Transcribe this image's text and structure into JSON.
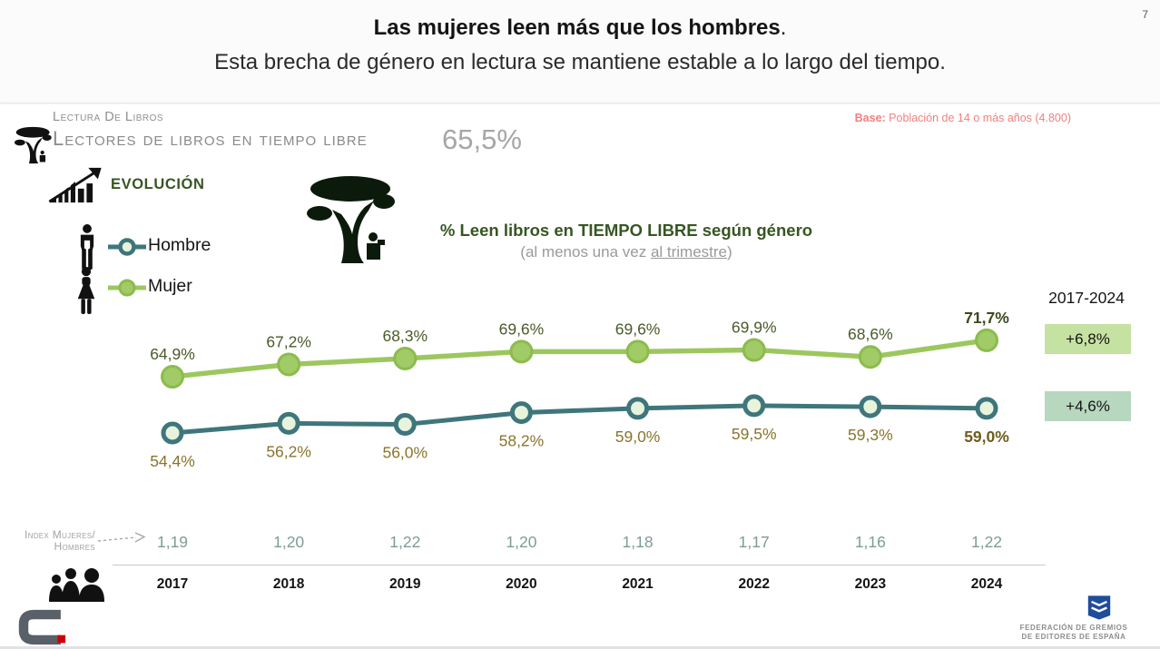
{
  "page": {
    "number": "7"
  },
  "title": {
    "main": "Las mujeres leen más que los hombres",
    "period": ".",
    "subtitle": "Esta brecha de género en lectura se mantiene estable a lo largo del tiempo."
  },
  "header": {
    "kicker": "Lectura De Libros",
    "title": "Lectores de libros en tiempo libre",
    "total": "65,5%",
    "base_label": "Base:",
    "base_text": " Población de 14 o más años (4.800)"
  },
  "section": {
    "evolution_label": "EVOLUCIÓN"
  },
  "chart_heading": {
    "subtitle_prefix": "(al menos una vez ",
    "subtitle_underlined": "al trimestre",
    "subtitle_suffix": ")"
  },
  "index_row": {
    "label_line1": "Index Mujeres/",
    "label_line2": "Hombres"
  },
  "footer": {
    "org_line1": "FEDERACIÓN DE GREMIOS",
    "org_line2": "DE EDITORES DE ESPAÑA"
  },
  "colors": {
    "dark_green_accent": "#375623",
    "base_note_pink": "#f08080",
    "index_value_teal": "#7e9c98",
    "logo_red": "#cc0000",
    "federation_blue": "#1f4c9c"
  },
  "chart_data": {
    "type": "line",
    "title": "% Leen libros en TIEMPO LIBRE según género",
    "subtitle": "(al menos una vez al trimestre)",
    "range_label": "2017-2024",
    "categories": [
      "2017",
      "2018",
      "2019",
      "2020",
      "2021",
      "2022",
      "2023",
      "2024"
    ],
    "series": [
      {
        "name": "Mujer",
        "color": "#9cc75e",
        "marker_fill": "#a0cb66",
        "marker_stroke": "#8cbb4e",
        "label_color": "#4a5b2a",
        "final_label_color": "#3c4a1b",
        "values": [
          64.9,
          67.2,
          68.3,
          69.6,
          69.6,
          69.9,
          68.6,
          71.7
        ],
        "labels": [
          "64,9%",
          "67,2%",
          "68,3%",
          "69,6%",
          "69,6%",
          "69,9%",
          "68,6%",
          "71,7%"
        ],
        "change": "+6,8%",
        "change_bg": "#c6e2a2"
      },
      {
        "name": "Hombre",
        "color": "#3e767c",
        "marker_fill": "#e8f3dc",
        "marker_stroke": "#3e767c",
        "label_color": "#8a742c",
        "final_label_color": "#6e5d1e",
        "values": [
          54.4,
          56.2,
          56.0,
          58.2,
          59.0,
          59.5,
          59.3,
          59.0
        ],
        "labels": [
          "54,4%",
          "56,2%",
          "56,0%",
          "58,2%",
          "59,0%",
          "59,5%",
          "59,3%",
          "59,0%"
        ],
        "change": "+4,6%",
        "change_bg": "#b7d7be"
      }
    ],
    "index_mujeres_hombres": [
      "1,19",
      "1,20",
      "1,22",
      "1,20",
      "1,18",
      "1,17",
      "1,16",
      "1,22"
    ],
    "grid": false,
    "legend_position": "left",
    "ylim": [
      50,
      75
    ]
  }
}
